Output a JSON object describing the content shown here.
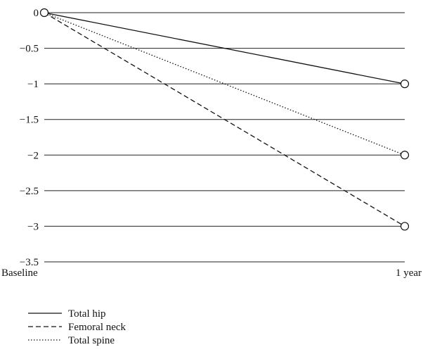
{
  "chart_data": {
    "type": "line",
    "title": "",
    "xlabel": "",
    "ylabel": "",
    "categories": [
      "Baseline",
      "1 year"
    ],
    "y_ticks": [
      "0",
      "−0.5",
      "−1",
      "−1.5",
      "−2",
      "−2.5",
      "−3",
      "−3.5"
    ],
    "ylim": [
      -3.5,
      0
    ],
    "grid": "horizontal",
    "legend_position": "bottom-left",
    "series": [
      {
        "name": "Total hip",
        "values": [
          0,
          -1
        ],
        "dash": "solid"
      },
      {
        "name": "Femoral neck",
        "values": [
          0,
          -3
        ],
        "dash": "dashed"
      },
      {
        "name": "Total spine",
        "values": [
          0,
          -2
        ],
        "dash": "dotted"
      }
    ]
  }
}
